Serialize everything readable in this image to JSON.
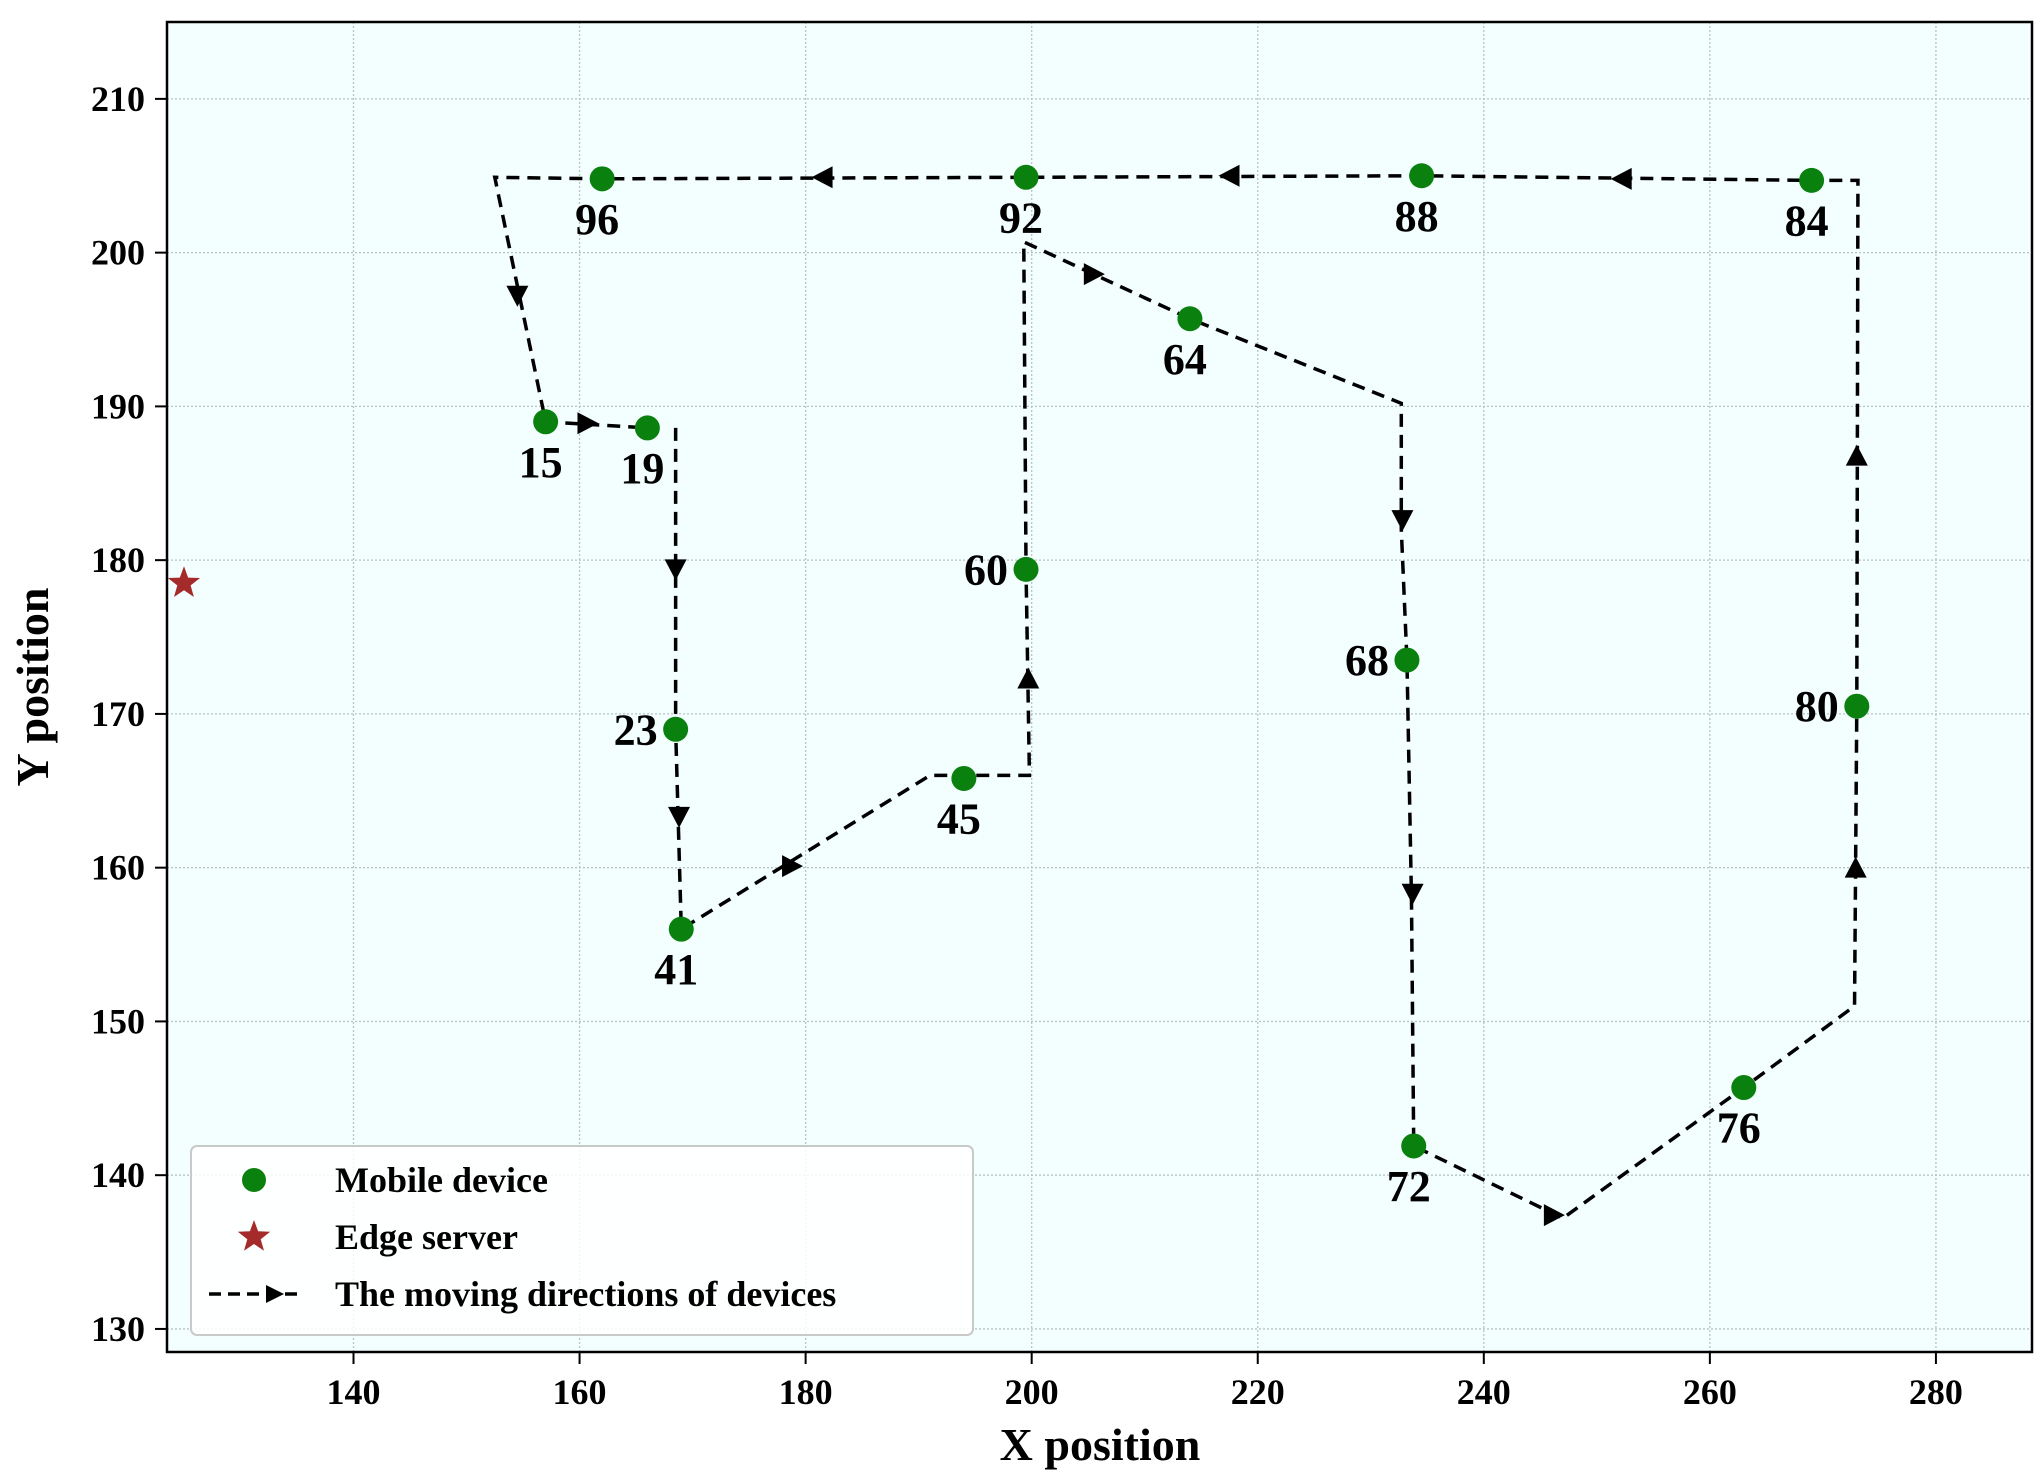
{
  "chart_data": {
    "type": "scatter",
    "title": "",
    "xlabel": "X position",
    "ylabel": "Y position",
    "xlim": [
      123.5,
      288.5
    ],
    "ylim": [
      128.5,
      215
    ],
    "xticks": [
      140,
      160,
      180,
      200,
      220,
      240,
      260,
      280
    ],
    "yticks": [
      130,
      140,
      150,
      160,
      170,
      180,
      190,
      200,
      210
    ],
    "grid": true,
    "legend_position": "bottom-left",
    "colors": {
      "background": "#f3fefe",
      "device": "#0a800f",
      "server": "#a52a2a",
      "path": "#000000",
      "grid": "#b7c4c4"
    },
    "legend": [
      {
        "label": "Mobile device",
        "marker": "circle",
        "color": "#0a800f"
      },
      {
        "label": "Edge server",
        "marker": "star",
        "color": "#a52a2a"
      },
      {
        "label": "The moving directions of devices",
        "marker": "dashed-arrow",
        "color": "#000000"
      }
    ],
    "edge_server": {
      "x": 125,
      "y": 178.5
    },
    "devices": [
      {
        "label": "15",
        "x": 157,
        "y": 189,
        "label_pos": "below"
      },
      {
        "label": "19",
        "x": 166,
        "y": 188.6,
        "label_pos": "below"
      },
      {
        "label": "23",
        "x": 168.5,
        "y": 169,
        "label_pos": "left"
      },
      {
        "label": "41",
        "x": 169,
        "y": 156,
        "label_pos": "below"
      },
      {
        "label": "45",
        "x": 194,
        "y": 165.8,
        "label_pos": "below"
      },
      {
        "label": "60",
        "x": 199.5,
        "y": 179.4,
        "label_pos": "left"
      },
      {
        "label": "64",
        "x": 214,
        "y": 195.7,
        "label_pos": "below"
      },
      {
        "label": "68",
        "x": 233.2,
        "y": 173.5,
        "label_pos": "left"
      },
      {
        "label": "72",
        "x": 233.8,
        "y": 141.9,
        "label_pos": "below"
      },
      {
        "label": "76",
        "x": 263,
        "y": 145.7,
        "label_pos": "below"
      },
      {
        "label": "80",
        "x": 273,
        "y": 170.5,
        "label_pos": "left"
      },
      {
        "label": "84",
        "x": 269,
        "y": 204.7,
        "label_pos": "below"
      },
      {
        "label": "88",
        "x": 234.5,
        "y": 205,
        "label_pos": "below"
      },
      {
        "label": "92",
        "x": 199.5,
        "y": 204.9,
        "label_pos": "below"
      },
      {
        "label": "96",
        "x": 162,
        "y": 204.8,
        "label_pos": "below"
      }
    ],
    "path": [
      [
        168.5,
        188.6
      ],
      [
        168.5,
        169
      ],
      [
        169,
        156
      ],
      [
        191,
        166
      ],
      [
        199.8,
        166
      ],
      [
        199.5,
        179.4
      ],
      [
        199.3,
        200.7
      ],
      [
        214,
        195.7
      ],
      [
        232.7,
        190.2
      ],
      [
        232.7,
        182
      ],
      [
        233.2,
        173.5
      ],
      [
        233.6,
        158
      ],
      [
        233.8,
        141.9
      ],
      [
        247,
        137.2
      ],
      [
        263,
        145.7
      ],
      [
        272.8,
        151
      ],
      [
        273,
        170.5
      ],
      [
        273.1,
        204.7
      ],
      [
        269,
        204.7
      ],
      [
        234.5,
        205
      ],
      [
        199.5,
        204.9
      ],
      [
        162,
        204.8
      ],
      [
        152.5,
        204.9
      ],
      [
        157,
        189
      ],
      [
        166,
        188.6
      ]
    ],
    "arrows": [
      {
        "x": 168.5,
        "y": 179.4,
        "dir": "down"
      },
      {
        "x": 168.8,
        "y": 163.3,
        "dir": "down"
      },
      {
        "x": 178.8,
        "y": 160.1,
        "dir": "right"
      },
      {
        "x": 199.7,
        "y": 172.3,
        "dir": "up"
      },
      {
        "x": 205.5,
        "y": 198.6,
        "dir": "right"
      },
      {
        "x": 232.8,
        "y": 182.6,
        "dir": "down"
      },
      {
        "x": 233.7,
        "y": 158.3,
        "dir": "down"
      },
      {
        "x": 246.2,
        "y": 137.4,
        "dir": "right"
      },
      {
        "x": 272.9,
        "y": 160,
        "dir": "up"
      },
      {
        "x": 273,
        "y": 186.8,
        "dir": "up"
      },
      {
        "x": 252.2,
        "y": 204.8,
        "dir": "left"
      },
      {
        "x": 217.5,
        "y": 205,
        "dir": "left"
      },
      {
        "x": 181.5,
        "y": 204.9,
        "dir": "left"
      },
      {
        "x": 154.5,
        "y": 197.2,
        "dir": "down"
      },
      {
        "x": 160.7,
        "y": 188.9,
        "dir": "right"
      }
    ]
  }
}
